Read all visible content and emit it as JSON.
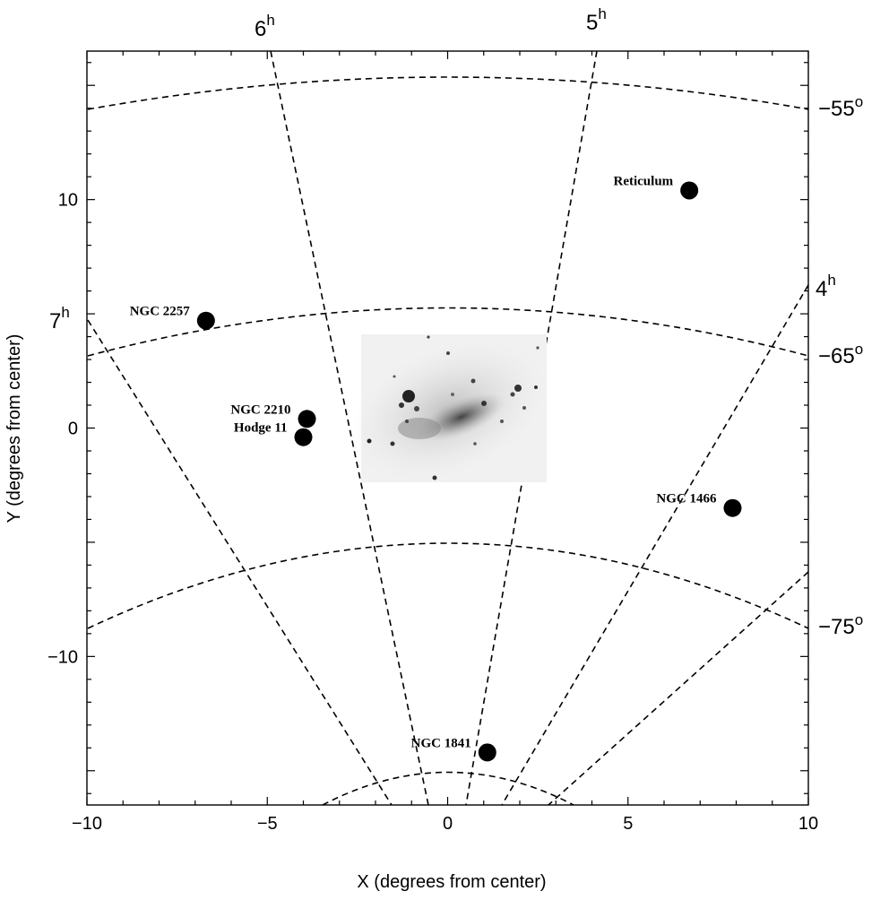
{
  "chart_data": {
    "type": "scatter",
    "xlabel": "X (degrees from center)",
    "ylabel": "Y (degrees from center)",
    "xlim": [
      -10,
      10
    ],
    "ylim": [
      -16.5,
      16.5
    ],
    "xticks": [
      -10,
      -5,
      0,
      5,
      10
    ],
    "yticks": [
      -10,
      0,
      10
    ],
    "points": [
      {
        "label": "Reticulum",
        "x": 6.7,
        "y": 10.4
      },
      {
        "label": "NGC 2257",
        "x": -6.7,
        "y": 4.7
      },
      {
        "label": "NGC 2210",
        "x": -3.9,
        "y": 0.4
      },
      {
        "label": "Hodge 11",
        "x": -4.0,
        "y": -0.4
      },
      {
        "label": "NGC 1466",
        "x": 7.9,
        "y": -3.5
      },
      {
        "label": "NGC 1841",
        "x": 1.1,
        "y": -14.2
      }
    ],
    "ra_labels": [
      {
        "hour": "6",
        "sup": "h"
      },
      {
        "hour": "5",
        "sup": "h"
      },
      {
        "hour": "7",
        "sup": "h"
      },
      {
        "hour": "4",
        "sup": "h"
      }
    ],
    "dec_labels": [
      {
        "deg": "−55",
        "sup": "o"
      },
      {
        "deg": "−65",
        "sup": "o"
      },
      {
        "deg": "−75",
        "sup": "o"
      }
    ],
    "inset_image": "LMC galaxy image"
  }
}
